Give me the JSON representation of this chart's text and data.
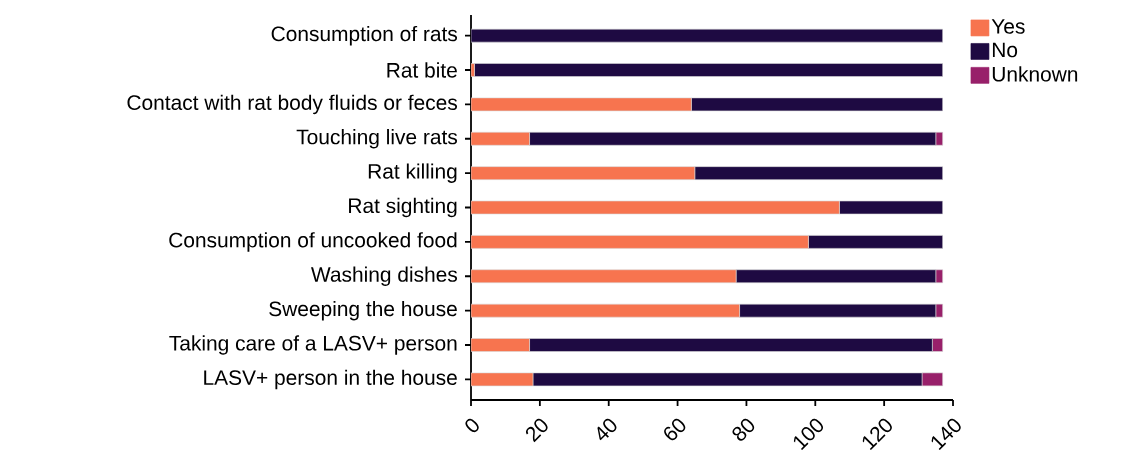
{
  "chart_data": {
    "type": "bar",
    "orientation": "horizontal",
    "stacked": true,
    "categories": [
      "Consumption of rats",
      "Rat bite",
      "Contact with rat body fluids or feces",
      "Touching live rats",
      "Rat killing",
      "Rat sighting",
      "Consumption of uncooked food",
      "Washing dishes",
      "Sweeping the house",
      "Taking care of a LASV+ person",
      "LASV+ person in the house"
    ],
    "series": [
      {
        "name": "Yes",
        "color": "#f7744f",
        "values": [
          0,
          1,
          64,
          17,
          65,
          107,
          98,
          77,
          78,
          17,
          18
        ]
      },
      {
        "name": "No",
        "color": "#1e0a42",
        "values": [
          137,
          136,
          73,
          118,
          72,
          30,
          39,
          58,
          57,
          117,
          113
        ]
      },
      {
        "name": "Unknown",
        "color": "#98206a",
        "values": [
          0,
          0,
          0,
          2,
          0,
          0,
          0,
          2,
          2,
          3,
          6
        ]
      }
    ],
    "xlim": [
      0,
      140
    ],
    "xticks": [
      0,
      20,
      40,
      60,
      80,
      100,
      120,
      140
    ],
    "legend": "top right",
    "grid": false
  }
}
